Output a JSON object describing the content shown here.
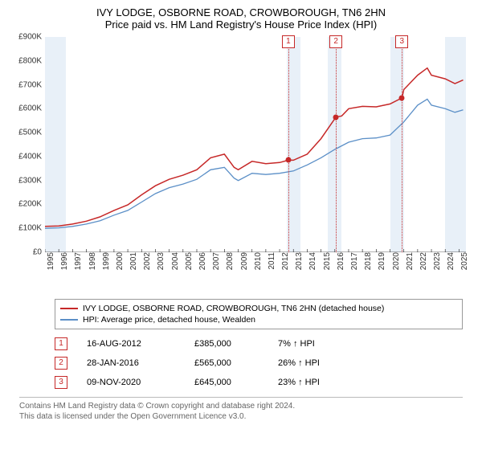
{
  "title": {
    "line1": "IVY LODGE, OSBORNE ROAD, CROWBOROUGH, TN6 2HN",
    "line2": "Price paid vs. HM Land Registry's House Price Index (HPI)",
    "fontsize": 13,
    "color": "#000000"
  },
  "chart": {
    "type": "line",
    "background_color": "#ffffff",
    "shade_color": "#e6eef7",
    "ylim": [
      0,
      900000
    ],
    "ytick_step": 100000,
    "yticks": [
      "£0",
      "£100K",
      "£200K",
      "£300K",
      "£400K",
      "£500K",
      "£600K",
      "£700K",
      "£800K",
      "£900K"
    ],
    "x_min_year": 1995,
    "x_max_year": 2025.5,
    "xticks": [
      "1995",
      "1996",
      "1997",
      "1998",
      "1999",
      "2000",
      "2001",
      "2002",
      "2003",
      "2004",
      "2005",
      "2006",
      "2007",
      "2008",
      "2009",
      "2010",
      "2011",
      "2012",
      "2013",
      "2014",
      "2015",
      "2016",
      "2017",
      "2018",
      "2019",
      "2020",
      "2021",
      "2022",
      "2023",
      "2024",
      "2025"
    ],
    "shaded_year_bands": [
      [
        1995,
        1996.5
      ],
      [
        2012.5,
        2013.5
      ],
      [
        2015.5,
        2016.5
      ],
      [
        2020,
        2021
      ],
      [
        2024,
        2025.5
      ]
    ],
    "sale_markers": [
      {
        "n": "1",
        "year": 2012.63,
        "price": 385000
      },
      {
        "n": "2",
        "year": 2016.08,
        "price": 565000
      },
      {
        "n": "3",
        "year": 2020.86,
        "price": 645000
      }
    ],
    "series": [
      {
        "name": "property",
        "label": "IVY LODGE, OSBORNE ROAD, CROWBOROUGH, TN6 2HN (detached house)",
        "color": "#c62828",
        "line_width": 1.5,
        "points": [
          [
            1995,
            108000
          ],
          [
            1996,
            110000
          ],
          [
            1997,
            118000
          ],
          [
            1998,
            130000
          ],
          [
            1999,
            148000
          ],
          [
            2000,
            175000
          ],
          [
            2001,
            198000
          ],
          [
            2002,
            240000
          ],
          [
            2003,
            278000
          ],
          [
            2004,
            305000
          ],
          [
            2005,
            322000
          ],
          [
            2006,
            345000
          ],
          [
            2007,
            395000
          ],
          [
            2008,
            410000
          ],
          [
            2008.7,
            355000
          ],
          [
            2009,
            345000
          ],
          [
            2010,
            380000
          ],
          [
            2011,
            370000
          ],
          [
            2012,
            375000
          ],
          [
            2012.63,
            385000
          ],
          [
            2013,
            385000
          ],
          [
            2014,
            410000
          ],
          [
            2015,
            475000
          ],
          [
            2016.08,
            565000
          ],
          [
            2016.5,
            570000
          ],
          [
            2017,
            600000
          ],
          [
            2018,
            610000
          ],
          [
            2019,
            608000
          ],
          [
            2020,
            620000
          ],
          [
            2020.86,
            645000
          ],
          [
            2021,
            680000
          ],
          [
            2022,
            740000
          ],
          [
            2022.7,
            770000
          ],
          [
            2023,
            740000
          ],
          [
            2024,
            725000
          ],
          [
            2024.7,
            705000
          ],
          [
            2025.3,
            720000
          ]
        ]
      },
      {
        "name": "hpi",
        "label": "HPI: Average price, detached house, Wealden",
        "color": "#5b8fc7",
        "line_width": 1.3,
        "points": [
          [
            1995,
            100000
          ],
          [
            1996,
            102000
          ],
          [
            1997,
            108000
          ],
          [
            1998,
            118000
          ],
          [
            1999,
            132000
          ],
          [
            2000,
            155000
          ],
          [
            2001,
            175000
          ],
          [
            2002,
            210000
          ],
          [
            2003,
            245000
          ],
          [
            2004,
            270000
          ],
          [
            2005,
            285000
          ],
          [
            2006,
            305000
          ],
          [
            2007,
            345000
          ],
          [
            2008,
            355000
          ],
          [
            2008.7,
            310000
          ],
          [
            2009,
            300000
          ],
          [
            2010,
            330000
          ],
          [
            2011,
            325000
          ],
          [
            2012,
            330000
          ],
          [
            2013,
            340000
          ],
          [
            2014,
            365000
          ],
          [
            2015,
            395000
          ],
          [
            2016,
            430000
          ],
          [
            2017,
            460000
          ],
          [
            2018,
            475000
          ],
          [
            2019,
            478000
          ],
          [
            2020,
            490000
          ],
          [
            2021,
            545000
          ],
          [
            2022,
            615000
          ],
          [
            2022.7,
            640000
          ],
          [
            2023,
            615000
          ],
          [
            2024,
            600000
          ],
          [
            2024.7,
            585000
          ],
          [
            2025.3,
            595000
          ]
        ]
      }
    ],
    "axis_fontsize": 10,
    "axis_color": "#333333"
  },
  "legend": {
    "border_color": "#999999",
    "fontsize": 10.5
  },
  "sales_table": {
    "rows": [
      {
        "n": "1",
        "date": "16-AUG-2012",
        "price": "£385,000",
        "diff": "7% ↑ HPI"
      },
      {
        "n": "2",
        "date": "28-JAN-2016",
        "price": "£565,000",
        "diff": "26% ↑ HPI"
      },
      {
        "n": "3",
        "date": "09-NOV-2020",
        "price": "£645,000",
        "diff": "23% ↑ HPI"
      }
    ],
    "fontsize": 11,
    "marker_border_color": "#c62828"
  },
  "footer": {
    "line1": "Contains HM Land Registry data © Crown copyright and database right 2024.",
    "line2": "This data is licensed under the Open Government Licence v3.0.",
    "fontsize": 10,
    "color": "#666666"
  }
}
